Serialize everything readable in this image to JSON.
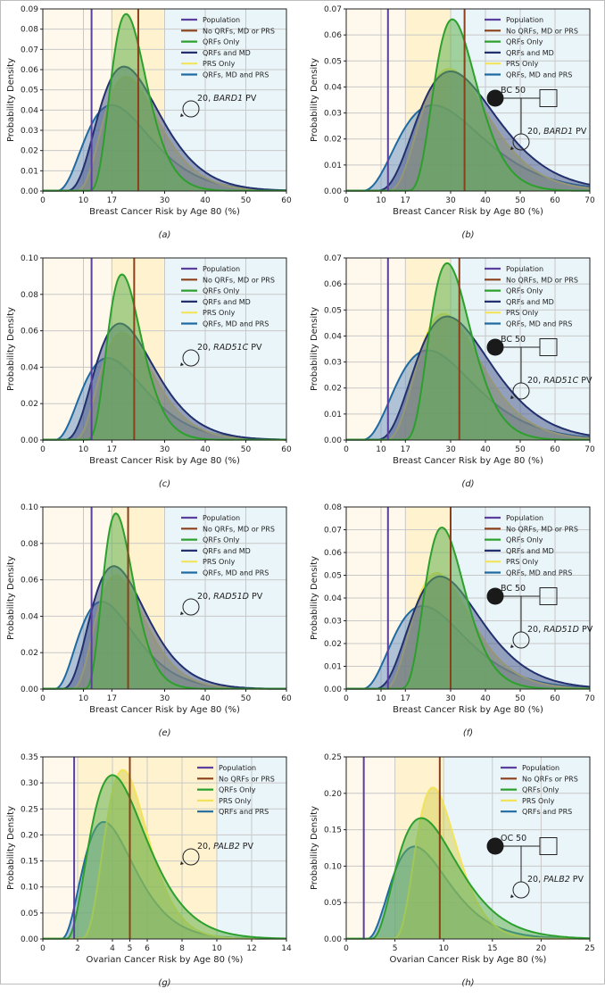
{
  "figure": {
    "colors": {
      "population": "#5b3f9e",
      "no_factors": "#8b3f1a",
      "qrfs_only": "#2ca02c",
      "qrfs_md": "#23306e",
      "prs_only": "#f2e35b",
      "qrfs_md_prs": "#1f6aa0",
      "band_low": "#fff8ec",
      "band_mid": "#fff3cf",
      "band_high": "#eaf5fa",
      "grid": "#c8c8c8"
    }
  },
  "chart_data": [
    {
      "id": "a",
      "type": "area",
      "caption": "(a)",
      "xlabel": "Breast Cancer Risk by Age 80 (%)",
      "ylabel": "Probability Density",
      "xlim": [
        0,
        60
      ],
      "ylim": [
        0,
        0.09
      ],
      "xticks": [
        0,
        10,
        17,
        30,
        40,
        50,
        60
      ],
      "yticks": [
        0.0,
        0.01,
        0.02,
        0.03,
        0.04,
        0.05,
        0.06,
        0.07,
        0.08,
        0.09
      ],
      "ytick_decimals": 2,
      "bands": [
        17,
        30
      ],
      "grid": true,
      "legend": "top-right",
      "reference_lines": {
        "population": 12,
        "no_factors": 23.5
      },
      "pedigree": {
        "proband": "20, BARD1 PV",
        "gene": "BARD1",
        "relative": null
      },
      "series": [
        {
          "name": "QRFs, MD and PRS",
          "key": "qrfs_md_prs",
          "peak_x": 17,
          "peak_y": 0.0425,
          "start": 3,
          "skew": 2.2
        },
        {
          "name": "PRS Only",
          "key": "prs_only",
          "peak_x": 20.5,
          "peak_y": 0.0565,
          "start": 7.5,
          "skew": 1.8
        },
        {
          "name": "QRFs and MD",
          "key": "qrfs_md",
          "peak_x": 20,
          "peak_y": 0.0615,
          "start": 5,
          "skew": 1.7
        },
        {
          "name": "QRFs Only",
          "key": "qrfs_only",
          "peak_x": 20.5,
          "peak_y": 0.0875,
          "start": 10.5,
          "skew": 1.3
        }
      ],
      "legend_entries": [
        "Population",
        "No QRFs, MD or PRS",
        "QRFs Only",
        "QRFs and MD",
        "PRS Only",
        "QRFs, MD and PRS"
      ]
    },
    {
      "id": "b",
      "type": "area",
      "caption": "(b)",
      "xlabel": "Breast Cancer Risk by Age 80 (%)",
      "ylabel": "Probability Density",
      "xlim": [
        0,
        70
      ],
      "ylim": [
        0,
        0.07
      ],
      "xticks": [
        0,
        10,
        17,
        30,
        40,
        50,
        60,
        70
      ],
      "yticks": [
        0.0,
        0.01,
        0.02,
        0.03,
        0.04,
        0.05,
        0.06,
        0.07
      ],
      "ytick_decimals": 2,
      "bands": [
        17,
        30
      ],
      "grid": true,
      "legend": "top-right",
      "reference_lines": {
        "population": 12,
        "no_factors": 34
      },
      "pedigree": {
        "proband": "20, BARD1 PV",
        "gene": "BARD1",
        "relative": "BC 50"
      },
      "series": [
        {
          "name": "QRFs, MD and PRS",
          "key": "qrfs_md_prs",
          "peak_x": 25,
          "peak_y": 0.033,
          "start": 4,
          "skew": 2.2
        },
        {
          "name": "PRS Only",
          "key": "prs_only",
          "peak_x": 29.5,
          "peak_y": 0.047,
          "start": 11,
          "skew": 1.8
        },
        {
          "name": "QRFs and MD",
          "key": "qrfs_md",
          "peak_x": 30,
          "peak_y": 0.046,
          "start": 7.5,
          "skew": 1.7
        },
        {
          "name": "QRFs Only",
          "key": "qrfs_only",
          "peak_x": 30.5,
          "peak_y": 0.066,
          "start": 16.5,
          "skew": 1.3
        }
      ],
      "legend_entries": [
        "Population",
        "No QRFs, MD or PRS",
        "QRFs Only",
        "QRFs and MD",
        "PRS Only",
        "QRFs, MD and PRS"
      ]
    },
    {
      "id": "c",
      "type": "area",
      "caption": "(c)",
      "xlabel": "Breast Cancer Risk by Age 80 (%)",
      "ylabel": "Probability Density",
      "xlim": [
        0,
        60
      ],
      "ylim": [
        0,
        0.1
      ],
      "xticks": [
        0,
        10,
        17,
        30,
        40,
        50,
        60
      ],
      "yticks": [
        0.0,
        0.02,
        0.04,
        0.06,
        0.08,
        0.1
      ],
      "ytick_decimals": 2,
      "bands": [
        17,
        30
      ],
      "grid": true,
      "legend": "top-right",
      "reference_lines": {
        "population": 12,
        "no_factors": 22.5
      },
      "pedigree": {
        "proband": "20, RAD51C PV",
        "gene": "RAD51C",
        "relative": null
      },
      "series": [
        {
          "name": "QRFs, MD and PRS",
          "key": "qrfs_md_prs",
          "peak_x": 16,
          "peak_y": 0.045,
          "start": 2.5,
          "skew": 2.2
        },
        {
          "name": "PRS Only",
          "key": "prs_only",
          "peak_x": 19.5,
          "peak_y": 0.059,
          "start": 7,
          "skew": 1.8
        },
        {
          "name": "QRFs and MD",
          "key": "qrfs_md",
          "peak_x": 19,
          "peak_y": 0.064,
          "start": 4.5,
          "skew": 1.7
        },
        {
          "name": "QRFs Only",
          "key": "qrfs_only",
          "peak_x": 19.5,
          "peak_y": 0.091,
          "start": 10,
          "skew": 1.3
        }
      ],
      "legend_entries": [
        "Population",
        "No QRFs, MD or PRS",
        "QRFs Only",
        "QRFs and MD",
        "PRS Only",
        "QRFs, MD and PRS"
      ]
    },
    {
      "id": "d",
      "type": "area",
      "caption": "(d)",
      "xlabel": "Breast Cancer Risk by Age 80 (%)",
      "ylabel": "Probability Density",
      "xlim": [
        0,
        70
      ],
      "ylim": [
        0,
        0.07
      ],
      "xticks": [
        0,
        10,
        17,
        30,
        40,
        50,
        60,
        70
      ],
      "yticks": [
        0.0,
        0.01,
        0.02,
        0.03,
        0.04,
        0.05,
        0.06,
        0.07
      ],
      "ytick_decimals": 2,
      "bands": [
        17,
        30
      ],
      "grid": true,
      "legend": "top-right",
      "reference_lines": {
        "population": 12,
        "no_factors": 32.5
      },
      "pedigree": {
        "proband": "20, RAD51C PV",
        "gene": "RAD51C",
        "relative": "BC 50"
      },
      "series": [
        {
          "name": "QRFs, MD and PRS",
          "key": "qrfs_md_prs",
          "peak_x": 23.5,
          "peak_y": 0.0345,
          "start": 4,
          "skew": 2.2
        },
        {
          "name": "PRS Only",
          "key": "prs_only",
          "peak_x": 28,
          "peak_y": 0.0485,
          "start": 10.5,
          "skew": 1.8
        },
        {
          "name": "QRFs and MD",
          "key": "qrfs_md",
          "peak_x": 29,
          "peak_y": 0.0475,
          "start": 7.5,
          "skew": 1.7
        },
        {
          "name": "QRFs Only",
          "key": "qrfs_only",
          "peak_x": 29,
          "peak_y": 0.068,
          "start": 15.5,
          "skew": 1.3
        }
      ],
      "legend_entries": [
        "Population",
        "No QRFs, MD or PRS",
        "QRFs Only",
        "QRFs and MD",
        "PRS Only",
        "QRFs, MD and PRS"
      ]
    },
    {
      "id": "e",
      "type": "area",
      "caption": "(e)",
      "xlabel": "Breast Cancer Risk by Age 80 (%)",
      "ylabel": "Probability Density",
      "xlim": [
        0,
        60
      ],
      "ylim": [
        0,
        0.1
      ],
      "xticks": [
        0,
        10,
        17,
        30,
        40,
        50,
        60
      ],
      "yticks": [
        0.0,
        0.02,
        0.04,
        0.06,
        0.08,
        0.1
      ],
      "ytick_decimals": 2,
      "bands": [
        17,
        30
      ],
      "grid": true,
      "legend": "top-right",
      "reference_lines": {
        "population": 12,
        "no_factors": 21
      },
      "pedigree": {
        "proband": "20, RAD51D PV",
        "gene": "RAD51D",
        "relative": null
      },
      "series": [
        {
          "name": "QRFs, MD and PRS",
          "key": "qrfs_md_prs",
          "peak_x": 14.5,
          "peak_y": 0.048,
          "start": 2.5,
          "skew": 2.2
        },
        {
          "name": "PRS Only",
          "key": "prs_only",
          "peak_x": 18,
          "peak_y": 0.0625,
          "start": 6.5,
          "skew": 1.8
        },
        {
          "name": "QRFs and MD",
          "key": "qrfs_md",
          "peak_x": 17.5,
          "peak_y": 0.0675,
          "start": 4,
          "skew": 1.7
        },
        {
          "name": "QRFs Only",
          "key": "qrfs_only",
          "peak_x": 18,
          "peak_y": 0.0965,
          "start": 9.5,
          "skew": 1.3
        }
      ],
      "legend_entries": [
        "Population",
        "No QRFs, MD or PRS",
        "QRFs Only",
        "QRFs and MD",
        "PRS Only",
        "QRFs, MD and PRS"
      ]
    },
    {
      "id": "f",
      "type": "area",
      "caption": "(f)",
      "xlabel": "Breast Cancer Risk by Age 80 (%)",
      "ylabel": "Probability Density",
      "xlim": [
        0,
        70
      ],
      "ylim": [
        0,
        0.08
      ],
      "xticks": [
        0,
        10,
        17,
        30,
        40,
        50,
        60,
        70
      ],
      "yticks": [
        0.0,
        0.01,
        0.02,
        0.03,
        0.04,
        0.05,
        0.06,
        0.07,
        0.08
      ],
      "ytick_decimals": 2,
      "bands": [
        17,
        30
      ],
      "grid": true,
      "legend": "top-right",
      "reference_lines": {
        "population": 12,
        "no_factors": 30
      },
      "pedigree": {
        "proband": "20, RAD51D PV",
        "gene": "RAD51D",
        "relative": "BC 50"
      },
      "series": [
        {
          "name": "QRFs, MD and PRS",
          "key": "qrfs_md_prs",
          "peak_x": 22,
          "peak_y": 0.0365,
          "start": 4,
          "skew": 2.2
        },
        {
          "name": "PRS Only",
          "key": "prs_only",
          "peak_x": 26,
          "peak_y": 0.051,
          "start": 10,
          "skew": 1.8
        },
        {
          "name": "QRFs and MD",
          "key": "qrfs_md",
          "peak_x": 27,
          "peak_y": 0.0495,
          "start": 7,
          "skew": 1.7
        },
        {
          "name": "QRFs Only",
          "key": "qrfs_only",
          "peak_x": 27.5,
          "peak_y": 0.071,
          "start": 14.5,
          "skew": 1.3
        }
      ],
      "legend_entries": [
        "Population",
        "No QRFs, MD or PRS",
        "QRFs Only",
        "QRFs and MD",
        "PRS Only",
        "QRFs, MD and PRS"
      ]
    },
    {
      "id": "g",
      "type": "area",
      "caption": "(g)",
      "xlabel": "Ovarian Cancer Risk by Age 80 (%)",
      "ylabel": "Probability Density",
      "xlim": [
        0,
        14
      ],
      "ylim": [
        0,
        0.35
      ],
      "xticks": [
        0,
        2,
        4,
        5,
        6,
        8,
        10,
        12,
        14
      ],
      "yticks": [
        0.0,
        0.05,
        0.1,
        0.15,
        0.2,
        0.25,
        0.3,
        0.35
      ],
      "ytick_decimals": 2,
      "bands": [
        2,
        10
      ],
      "grid": true,
      "legend": "top-right",
      "reference_lines": {
        "population": 1.8,
        "no_factors": 5
      },
      "pedigree": {
        "proband": "20, PALB2 PV",
        "gene": "PALB2",
        "relative": null
      },
      "series": [
        {
          "name": "QRFs and PRS",
          "key": "qrfs_md_prs",
          "peak_x": 3.5,
          "peak_y": 0.225,
          "start": 1.0,
          "skew": 2.3
        },
        {
          "name": "PRS Only",
          "key": "prs_only",
          "peak_x": 4.6,
          "peak_y": 0.325,
          "start": 2.0,
          "skew": 1.5
        },
        {
          "name": "QRFs Only",
          "key": "qrfs_only",
          "peak_x": 4.0,
          "peak_y": 0.315,
          "start": 1.3,
          "skew": 2.4
        }
      ],
      "legend_entries": [
        "Population",
        "No QRFs or PRS",
        "QRFs Only",
        "PRS Only",
        "QRFs and PRS"
      ]
    },
    {
      "id": "h",
      "type": "area",
      "caption": "(h)",
      "xlabel": "Ovarian Cancer Risk by Age 80 (%)",
      "ylabel": "Probability Density",
      "xlim": [
        0,
        25
      ],
      "ylim": [
        0,
        0.25
      ],
      "xticks": [
        0,
        5,
        10,
        15,
        20,
        25
      ],
      "yticks": [
        0.0,
        0.05,
        0.1,
        0.15,
        0.2,
        0.25
      ],
      "ytick_decimals": 2,
      "bands": [
        5,
        10
      ],
      "grid": true,
      "legend": "top-right",
      "reference_lines": {
        "population": 1.8,
        "no_factors": 9.6
      },
      "pedigree": {
        "proband": "20, PALB2 PV",
        "gene": "PALB2",
        "relative": "OC 50"
      },
      "series": [
        {
          "name": "QRFs and PRS",
          "key": "qrfs_md_prs",
          "peak_x": 7,
          "peak_y": 0.127,
          "start": 2.0,
          "skew": 2.3
        },
        {
          "name": "PRS Only",
          "key": "prs_only",
          "peak_x": 8.9,
          "peak_y": 0.208,
          "start": 4.5,
          "skew": 1.5
        },
        {
          "name": "QRFs Only",
          "key": "qrfs_only",
          "peak_x": 7.7,
          "peak_y": 0.166,
          "start": 2.5,
          "skew": 2.4
        }
      ],
      "legend_entries": [
        "Population",
        "No QRFs or PRS",
        "QRFs Only",
        "PRS Only",
        "QRFs and PRS"
      ]
    }
  ]
}
